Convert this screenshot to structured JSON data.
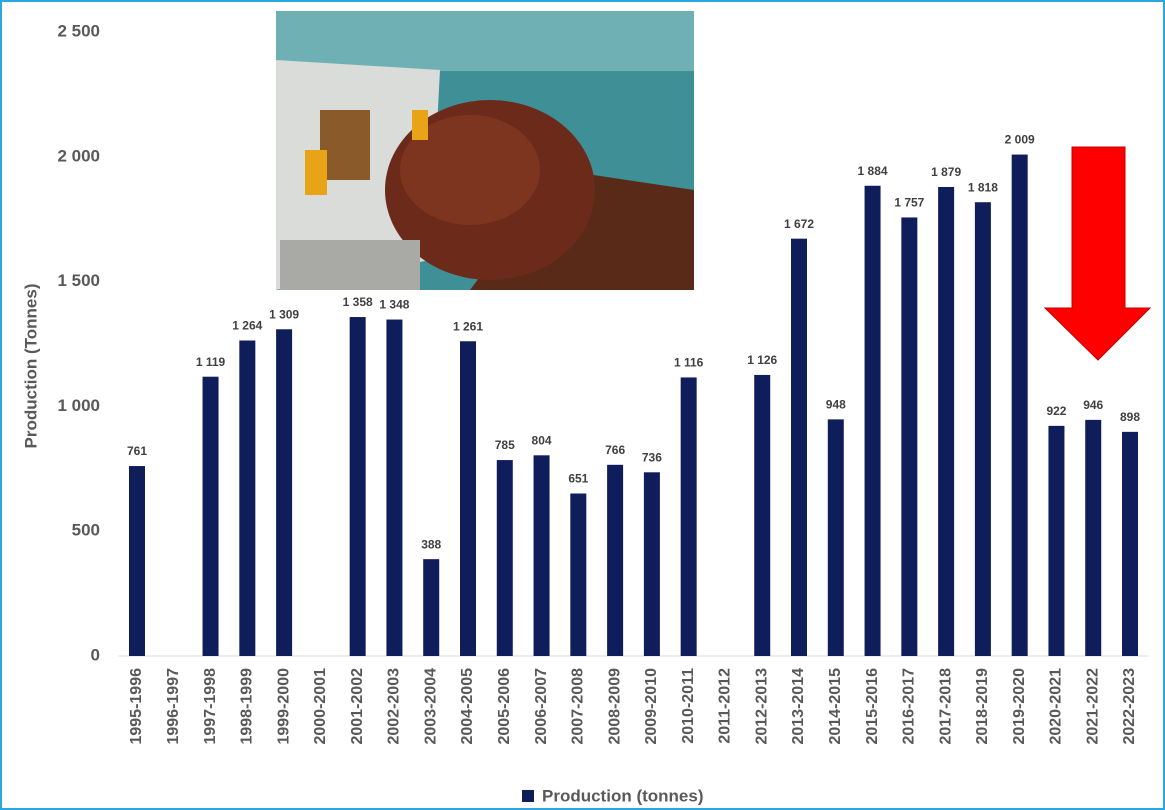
{
  "chart_data": {
    "type": "bar",
    "y_label": "Production (Tonnes)",
    "categories": [
      "1995-1996",
      "1996-1997",
      "1997-1998",
      "1998-1999",
      "1999-2000",
      "2000-2001",
      "2001-2002",
      "2002-2003",
      "2003-2004",
      "2004-2005",
      "2005-2006",
      "2006-2007",
      "2007-2008",
      "2008-2009",
      "2009-2010",
      "2010-2011",
      "2011-2012",
      "2012-2013",
      "2013-2014",
      "2014-2015",
      "2015-2016",
      "2016-2017",
      "2017-2018",
      "2018-2019",
      "2019-2020",
      "2020-2021",
      "2021-2022",
      "2022-2023"
    ],
    "series": [
      {
        "name": "Production (tonnes)",
        "color": "#101d5b",
        "values": [
          761,
          null,
          1119,
          1264,
          1309,
          null,
          1358,
          1348,
          388,
          1261,
          785,
          804,
          651,
          766,
          736,
          1116,
          null,
          1126,
          1672,
          948,
          1884,
          1757,
          1879,
          1818,
          2009,
          922,
          946,
          898
        ],
        "value_labels": [
          "761",
          null,
          "1 119",
          "1 264",
          "1 309",
          null,
          "1 358",
          "1 348",
          "388",
          "1 261",
          "785",
          "804",
          "651",
          "766",
          "736",
          "1 116",
          null,
          "1 126",
          "1 672",
          "948",
          "1 884",
          "1 757",
          "1 879",
          "1 818",
          "2 009",
          "922",
          "946",
          "898"
        ]
      }
    ],
    "ylim": [
      0,
      2500
    ],
    "yticks": [
      0,
      500,
      {
        "value": 1000,
        "label": "1 000"
      },
      {
        "value": 1500,
        "label": "1 500"
      },
      {
        "value": 2000,
        "label": "2 000"
      },
      {
        "value": 2500,
        "label": "2 500"
      }
    ],
    "legend": "bottom"
  }
}
